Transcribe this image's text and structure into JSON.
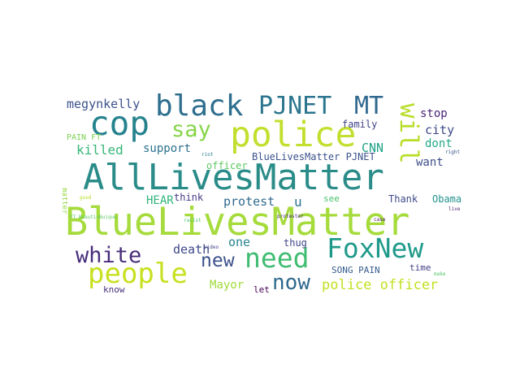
{
  "words": [
    {
      "text": "AllLivesMatter",
      "color": "#2a8c89"
    },
    {
      "text": "BlueLivesMatter",
      "color": "#a6db3c"
    },
    {
      "text": "police",
      "color": "#c1df2e"
    },
    {
      "text": "FoxNew",
      "color": "#1f9a8a"
    },
    {
      "text": "cop",
      "color": "#26838e"
    },
    {
      "text": "black",
      "color": "#2e6e8e"
    },
    {
      "text": "PJNET",
      "color": "#2b758e"
    },
    {
      "text": "MT",
      "color": "#31688e"
    },
    {
      "text": "will",
      "color": "#b8de29"
    },
    {
      "text": "people",
      "color": "#c8e020"
    },
    {
      "text": "need",
      "color": "#40bd72"
    },
    {
      "text": "say",
      "color": "#86d549"
    },
    {
      "text": "white",
      "color": "#472d7b"
    },
    {
      "text": "now",
      "color": "#30698e"
    },
    {
      "text": "new",
      "color": "#3b518b"
    },
    {
      "text": "police officer",
      "color": "#c4e021"
    },
    {
      "text": "megynkelly",
      "color": "#3b528b"
    },
    {
      "text": "stop",
      "color": "#482677"
    },
    {
      "text": "city",
      "color": "#3e4a89"
    },
    {
      "text": "killed",
      "color": "#35b779"
    },
    {
      "text": "support",
      "color": "#2c728e"
    },
    {
      "text": "want",
      "color": "#3e4c8a"
    },
    {
      "text": "dont",
      "color": "#22a884"
    },
    {
      "text": "CNN",
      "color": "#1fa188"
    },
    {
      "text": "family",
      "color": "#414487"
    },
    {
      "text": "BlueLivesMatter PJNET",
      "color": "#3b528b"
    },
    {
      "text": "PAIN FT",
      "color": "#7ad151"
    },
    {
      "text": "officer",
      "color": "#5ec962"
    },
    {
      "text": "HEAR",
      "color": "#2fb47c"
    },
    {
      "text": "think",
      "color": "#443a83"
    },
    {
      "text": "protest",
      "color": "#306a8e"
    },
    {
      "text": "u",
      "color": "#2c728e"
    },
    {
      "text": "see",
      "color": "#4ac16d"
    },
    {
      "text": "Thank",
      "color": "#3e4a89"
    },
    {
      "text": "Obama",
      "color": "#20928c"
    },
    {
      "text": "death",
      "color": "#3f4889"
    },
    {
      "text": "one",
      "color": "#25848e"
    },
    {
      "text": "thug",
      "color": "#404588"
    },
    {
      "text": "SONG PAIN",
      "color": "#365c8d"
    },
    {
      "text": "time",
      "color": "#424086"
    },
    {
      "text": "Mayor",
      "color": "#a0da39"
    },
    {
      "text": "know",
      "color": "#46327e"
    },
    {
      "text": "let",
      "color": "#440154"
    },
    {
      "text": "matter",
      "color": "#95d840"
    },
    {
      "text": "good",
      "color": "#b5de2b"
    },
    {
      "text": "riot",
      "color": "#2a788e"
    },
    {
      "text": "racist",
      "color": "#44bf70"
    },
    {
      "text": "protester",
      "color": "#482878"
    },
    {
      "text": "video",
      "color": "#404588"
    },
    {
      "text": "make",
      "color": "#54c568"
    },
    {
      "text": "right",
      "color": "#3a538b"
    },
    {
      "text": "live",
      "color": "#481f70"
    },
    {
      "text": "case",
      "color": "#481668"
    },
    {
      "text": "FT BeautinBuique",
      "color": "#5ec962"
    }
  ]
}
